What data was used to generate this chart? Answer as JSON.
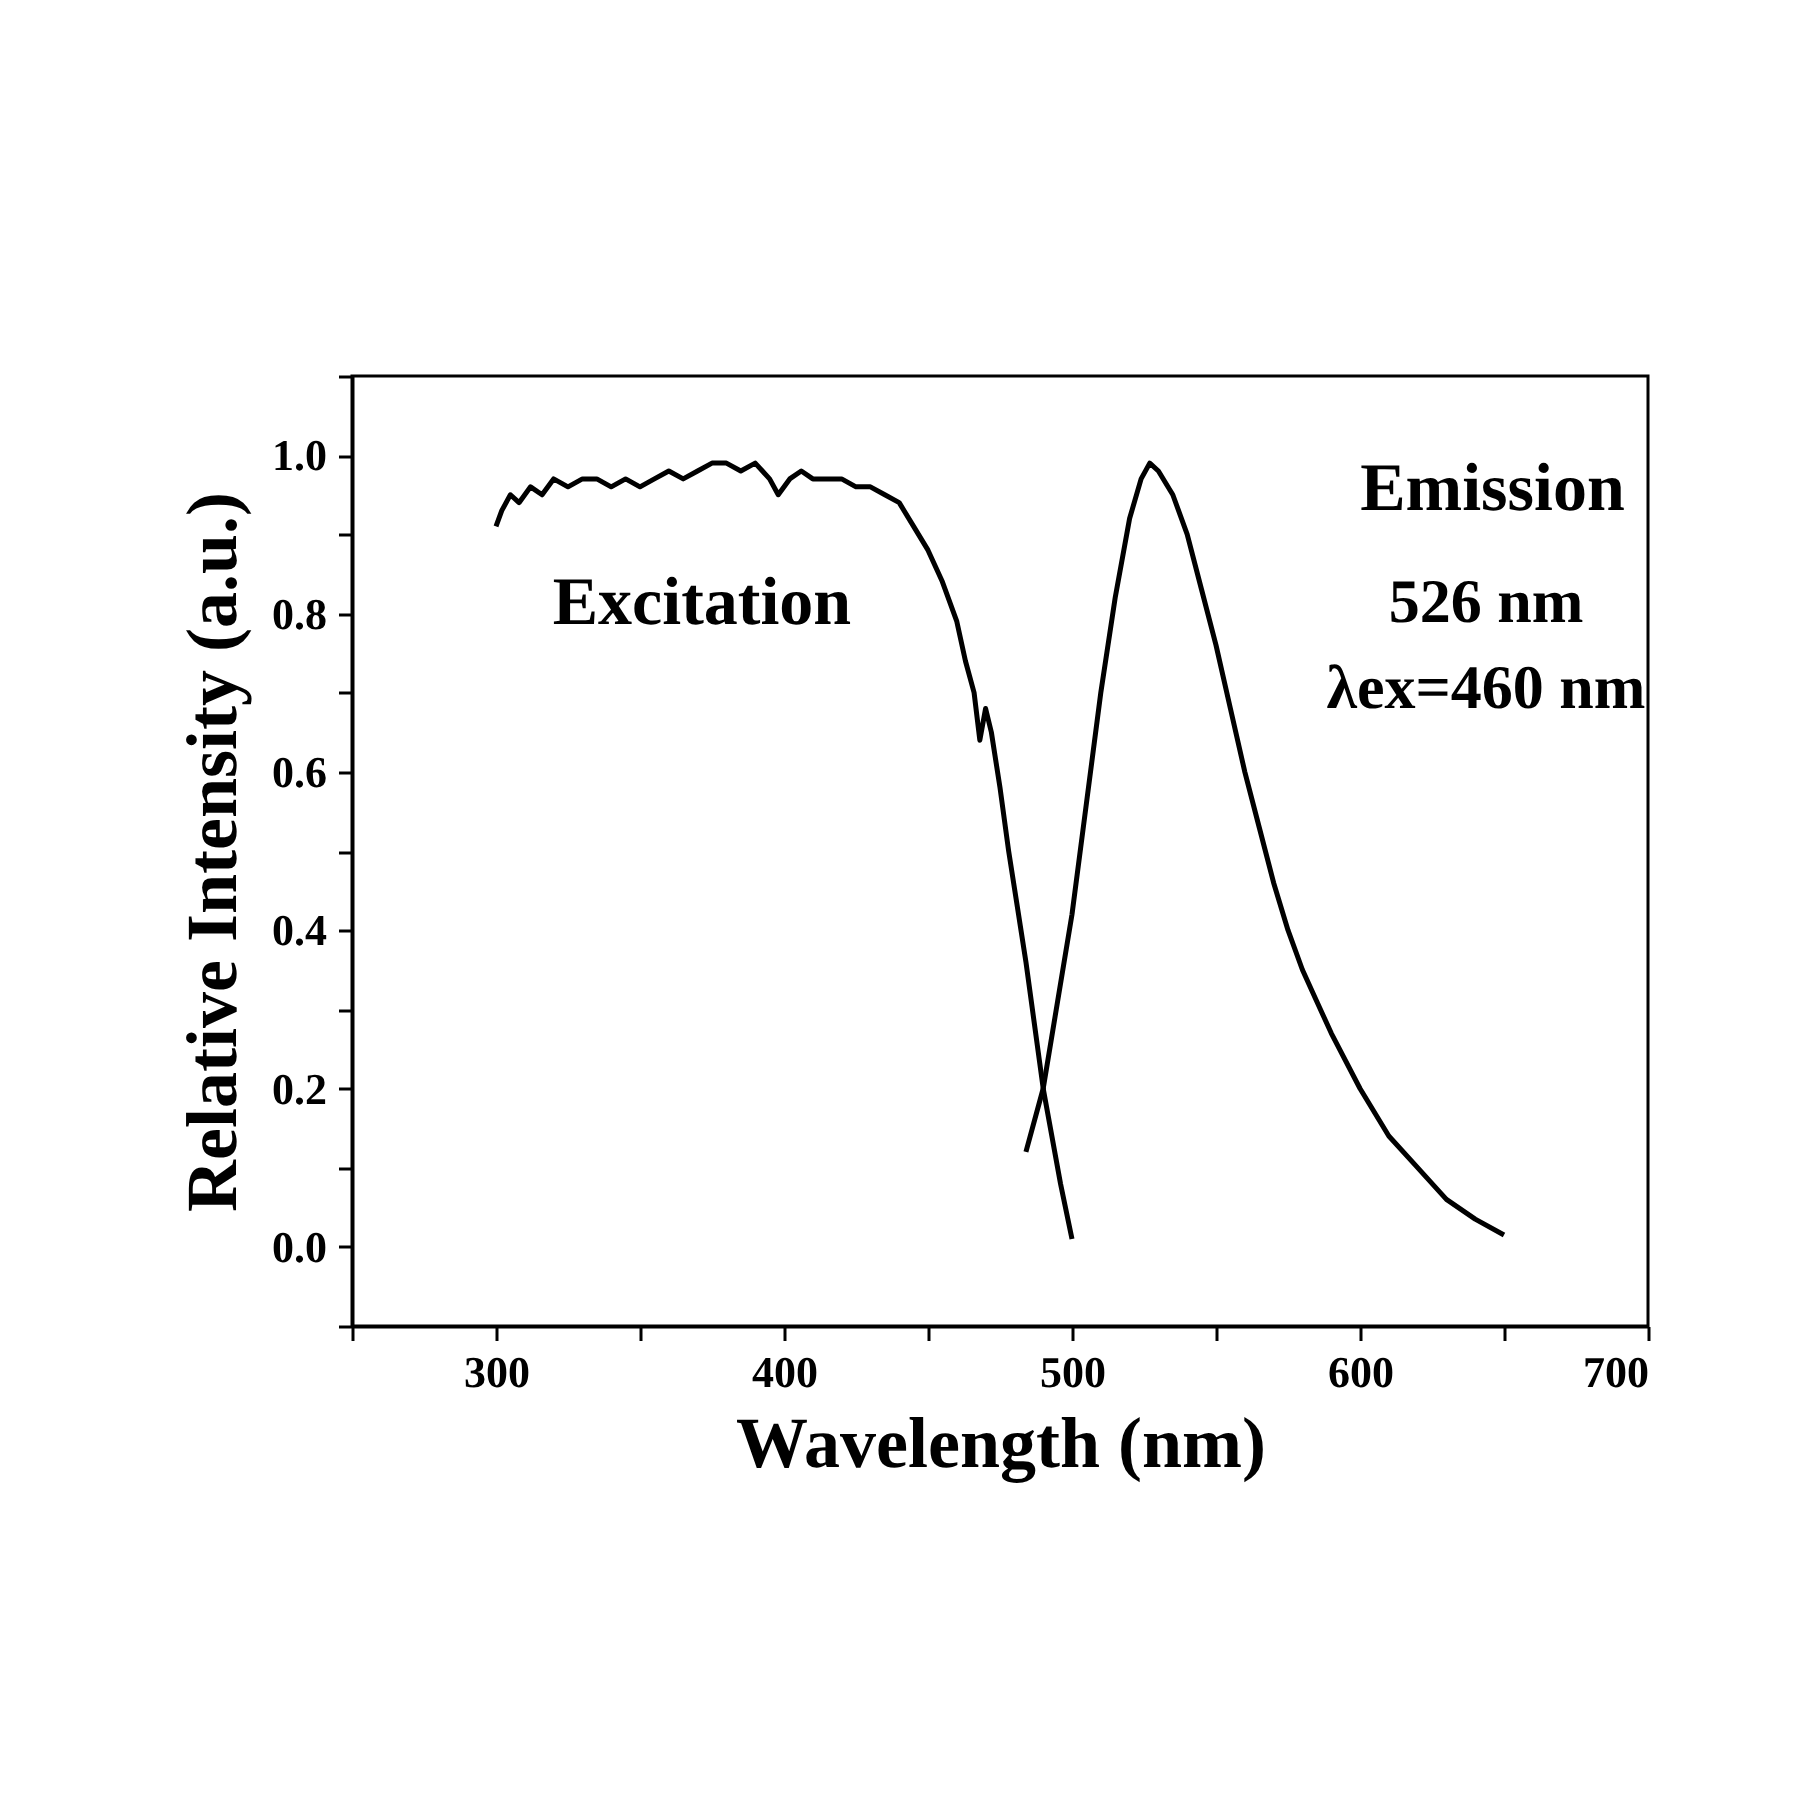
{
  "chart_data": {
    "type": "line",
    "xlabel": "Wavelength (nm)",
    "ylabel": "Relative Intensity (a.u.)",
    "xlim": [
      250,
      700
    ],
    "ylim": [
      -0.1,
      1.1
    ],
    "xticks": [
      {
        "value": 250,
        "label": null
      },
      300,
      {
        "value": 350,
        "label": null
      },
      400,
      {
        "value": 450,
        "label": null
      },
      500,
      {
        "value": 550,
        "label": null
      },
      600,
      {
        "value": 650,
        "label": null
      },
      700
    ],
    "yticks": [
      {
        "value": -0.1,
        "label": null
      },
      {
        "value": 0,
        "label": "0.0"
      },
      {
        "value": 0.1,
        "label": null
      },
      {
        "value": 0.2,
        "label": "0.2"
      },
      {
        "value": 0.3,
        "label": null
      },
      {
        "value": 0.4,
        "label": "0.4"
      },
      {
        "value": 0.5,
        "label": null
      },
      {
        "value": 0.6,
        "label": "0.6"
      },
      {
        "value": 0.7,
        "label": null
      },
      {
        "value": 0.8,
        "label": "0.8"
      },
      {
        "value": 0.9,
        "label": null
      },
      {
        "value": 1.0,
        "label": "1.0"
      },
      {
        "value": 1.1,
        "label": null
      }
    ],
    "grid": false,
    "annotations": [
      "526 nm",
      "λex=460 nm"
    ],
    "series": [
      {
        "name": "Excitation",
        "color": "#000000",
        "x": [
          300,
          302,
          305,
          308,
          312,
          316,
          320,
          325,
          330,
          335,
          340,
          345,
          350,
          355,
          360,
          365,
          370,
          375,
          380,
          385,
          390,
          395,
          398,
          402,
          406,
          410,
          415,
          420,
          425,
          430,
          435,
          440,
          445,
          450,
          455,
          460,
          463,
          466,
          468,
          470,
          472,
          475,
          478,
          481,
          484,
          487,
          490,
          493,
          496,
          500
        ],
        "values": [
          0.91,
          0.93,
          0.95,
          0.94,
          0.96,
          0.95,
          0.97,
          0.96,
          0.97,
          0.97,
          0.96,
          0.97,
          0.96,
          0.97,
          0.98,
          0.97,
          0.98,
          0.99,
          0.99,
          0.98,
          0.99,
          0.97,
          0.95,
          0.97,
          0.98,
          0.97,
          0.97,
          0.97,
          0.96,
          0.96,
          0.95,
          0.94,
          0.91,
          0.88,
          0.84,
          0.79,
          0.74,
          0.7,
          0.64,
          0.68,
          0.65,
          0.58,
          0.5,
          0.43,
          0.36,
          0.28,
          0.2,
          0.14,
          0.08,
          0.01
        ]
      },
      {
        "name": "Emission",
        "color": "#000000",
        "x": [
          484,
          490,
          495,
          500,
          505,
          510,
          515,
          520,
          524,
          527,
          530,
          535,
          540,
          545,
          550,
          555,
          560,
          565,
          570,
          575,
          580,
          585,
          590,
          600,
          610,
          620,
          630,
          640,
          650
        ],
        "values": [
          0.12,
          0.2,
          0.31,
          0.42,
          0.56,
          0.7,
          0.82,
          0.92,
          0.97,
          0.99,
          0.98,
          0.95,
          0.9,
          0.83,
          0.76,
          0.68,
          0.6,
          0.53,
          0.46,
          0.4,
          0.35,
          0.31,
          0.27,
          0.2,
          0.14,
          0.1,
          0.06,
          0.035,
          0.015
        ]
      }
    ]
  }
}
